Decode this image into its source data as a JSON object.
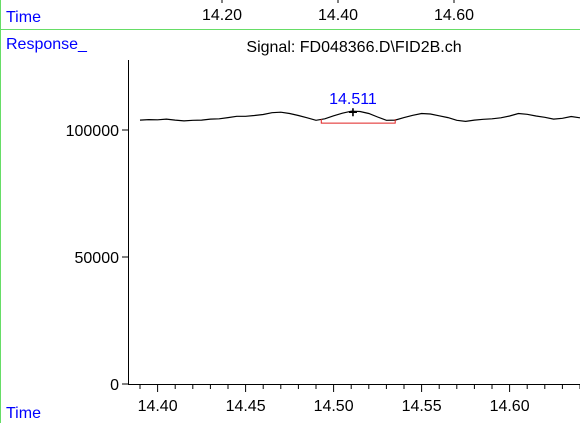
{
  "chart_data": {
    "type": "line",
    "labels": {
      "time_top": "Time",
      "response": "Response_",
      "signal": "Signal: FD048366.D\\FID2B.ch",
      "time_bottom": "Time"
    },
    "top_axis_ticks": [
      "14.20",
      "14.40",
      "14.60"
    ],
    "x_ticks": [
      14.4,
      14.45,
      14.5,
      14.55,
      14.6
    ],
    "x_tick_labels": [
      "14.40",
      "14.45",
      "14.50",
      "14.55",
      "14.60"
    ],
    "x_minor_step": 0.01,
    "y_ticks": [
      0,
      50000,
      100000
    ],
    "y_tick_labels": [
      "0",
      "50000",
      "100000"
    ],
    "xlim": [
      14.39,
      14.64
    ],
    "ylim": [
      0,
      128000
    ],
    "peak": {
      "label": "14.511",
      "x": 14.511,
      "y": 107000
    },
    "integration_baseline": {
      "x_start": 14.493,
      "x_end": 14.535,
      "y": 102700
    },
    "series": [
      {
        "color": "#000000",
        "points": [
          [
            14.39,
            103900
          ],
          [
            14.395,
            104100
          ],
          [
            14.4,
            104000
          ],
          [
            14.405,
            104300
          ],
          [
            14.41,
            103900
          ],
          [
            14.415,
            103600
          ],
          [
            14.42,
            103800
          ],
          [
            14.425,
            103900
          ],
          [
            14.43,
            104300
          ],
          [
            14.435,
            104400
          ],
          [
            14.44,
            104900
          ],
          [
            14.445,
            105400
          ],
          [
            14.45,
            105400
          ],
          [
            14.455,
            105700
          ],
          [
            14.46,
            106100
          ],
          [
            14.465,
            106800
          ],
          [
            14.47,
            107000
          ],
          [
            14.475,
            106500
          ],
          [
            14.48,
            105700
          ],
          [
            14.485,
            104800
          ],
          [
            14.49,
            103800
          ],
          [
            14.495,
            104400
          ],
          [
            14.5,
            105600
          ],
          [
            14.505,
            106600
          ],
          [
            14.51,
            107400
          ],
          [
            14.515,
            107300
          ],
          [
            14.52,
            106500
          ],
          [
            14.525,
            105100
          ],
          [
            14.53,
            103800
          ],
          [
            14.535,
            103900
          ],
          [
            14.54,
            104900
          ],
          [
            14.545,
            105800
          ],
          [
            14.55,
            106500
          ],
          [
            14.555,
            106300
          ],
          [
            14.56,
            105600
          ],
          [
            14.565,
            104900
          ],
          [
            14.57,
            103800
          ],
          [
            14.575,
            103400
          ],
          [
            14.58,
            103900
          ],
          [
            14.585,
            104200
          ],
          [
            14.59,
            104400
          ],
          [
            14.595,
            104800
          ],
          [
            14.6,
            105500
          ],
          [
            14.605,
            106500
          ],
          [
            14.61,
            106200
          ],
          [
            14.615,
            105500
          ],
          [
            14.62,
            105000
          ],
          [
            14.625,
            104300
          ],
          [
            14.63,
            104600
          ],
          [
            14.635,
            105300
          ],
          [
            14.64,
            104800
          ]
        ]
      }
    ],
    "colors": {
      "label_blue": "#0000ff",
      "frame_green": "#66dd66",
      "baseline_red": "#e02020",
      "trace": "#000000"
    }
  }
}
